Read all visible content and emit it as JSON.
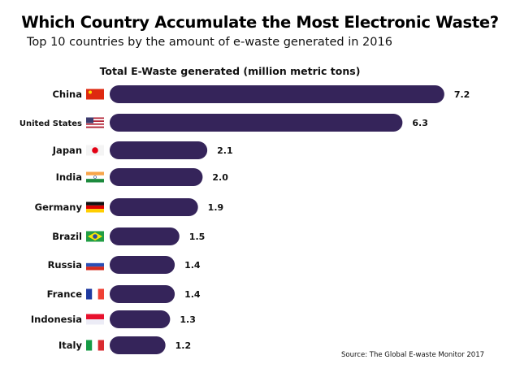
{
  "chart_data": {
    "type": "bar",
    "orientation": "horizontal",
    "title": "Which Country Accumulate the Most Electronic Waste?",
    "subtitle": "Top 10 countries by the amount of e-waste generated in 2016",
    "xlabel": "Total E-Waste generated (million metric tons)",
    "categories": [
      "China",
      "United States",
      "Japan",
      "India",
      "Germany",
      "Brazil",
      "Russia",
      "France",
      "Indonesia",
      "Italy"
    ],
    "flags": [
      "china-flag",
      "usa-flag",
      "japan-flag",
      "india-flag",
      "germany-flag",
      "brazil-flag",
      "russia-flag",
      "france-flag",
      "indonesia-flag",
      "italy-flag"
    ],
    "values": [
      7.2,
      6.3,
      2.1,
      2.0,
      1.9,
      1.5,
      1.4,
      1.4,
      1.3,
      1.2
    ],
    "value_labels": [
      "7.2",
      "6.3",
      "2.1",
      "2.0",
      "1.9",
      "1.5",
      "1.4",
      "1.4",
      "1.3",
      "1.2"
    ],
    "bar_color": "#35245a",
    "grid": false,
    "source": "Source: The Global E-waste Monitor 2017"
  }
}
